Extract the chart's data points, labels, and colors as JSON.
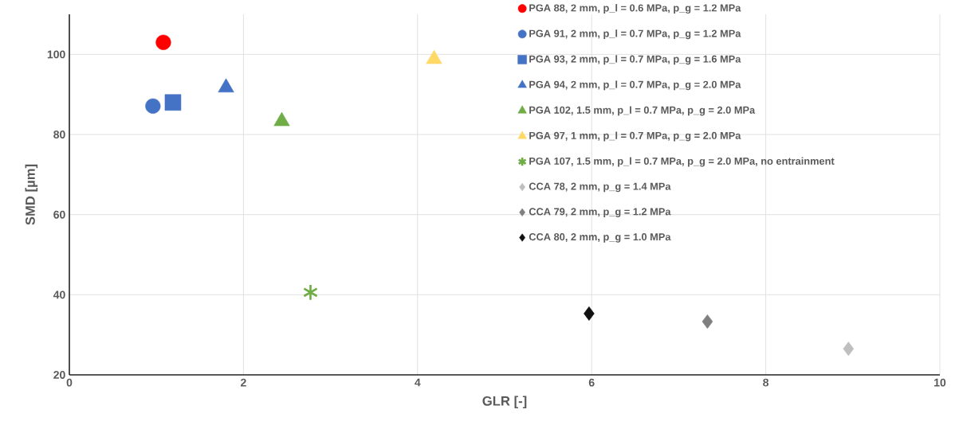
{
  "chart_data": {
    "type": "scatter",
    "xlabel": "GLR [-]",
    "ylabel": "SMD [µm]",
    "xlim": [
      0,
      10
    ],
    "xticks": [
      0,
      2,
      4,
      6,
      8,
      10
    ],
    "ylim": [
      20,
      110
    ],
    "yticks": [
      20,
      40,
      60,
      80,
      100
    ],
    "grid": true,
    "legend": "top right",
    "series": [
      {
        "name": "PGA 88, 2 mm, p_l = 0.6 MPa, p_g = 1.2 MPa",
        "color": "#ff0000",
        "marker": "circle",
        "x": [
          1.08
        ],
        "values": [
          103
        ]
      },
      {
        "name": "PGA 91, 2 mm, p_l = 0.7 MPa, p_g = 1.2 MPa",
        "color": "#4472c4",
        "marker": "circle",
        "x": [
          0.96
        ],
        "values": [
          87.1
        ]
      },
      {
        "name": "PGA 93, 2 mm, p_l = 0.7 MPa, p_g = 1.6 MPa",
        "color": "#4472c4",
        "marker": "square",
        "x": [
          1.19
        ],
        "values": [
          88
        ]
      },
      {
        "name": "PGA 94, 2 mm, p_l = 0.7 MPa, p_g = 2.0 MPa",
        "color": "#4472c4",
        "marker": "triangle",
        "x": [
          1.8
        ],
        "values": [
          91.7
        ]
      },
      {
        "name": "PGA 102, 1.5 mm, p_l = 0.7 MPa, p_g = 2.0 MPa",
        "color": "#70ad47",
        "marker": "triangle",
        "x": [
          2.44
        ],
        "values": [
          83.3
        ]
      },
      {
        "name": "PGA 97, 1 mm, p_l = 0.7 MPa, p_g = 2.0 MPa",
        "color": "#ffd966",
        "marker": "triangle",
        "x": [
          4.19
        ],
        "values": [
          98.8
        ]
      },
      {
        "name": "PGA 107, 1.5 mm, p_l = 0.7 MPa, p_g = 2.0 MPa, no entrainment",
        "color": "#70ad47",
        "marker": "cross",
        "x": [
          2.77
        ],
        "values": [
          40.6
        ]
      },
      {
        "name": "CCA 78, 2 mm, p_g = 1.4 MPa",
        "color": "#bfbfbf",
        "marker": "diamond",
        "x": [
          8.95
        ],
        "values": [
          26.5
        ]
      },
      {
        "name": "CCA 79, 2 mm, p_g = 1.2 MPa",
        "color": "#7f7f7f",
        "marker": "diamond",
        "x": [
          7.33
        ],
        "values": [
          33.3
        ]
      },
      {
        "name": "CCA 80, 2 mm, p_g = 1.0 MPa",
        "color": "#111111",
        "marker": "diamond",
        "x": [
          5.97
        ],
        "values": [
          35.3
        ]
      }
    ]
  }
}
